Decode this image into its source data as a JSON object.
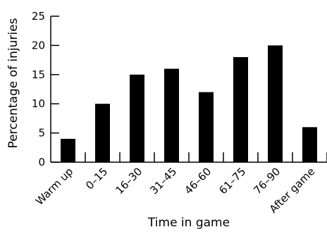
{
  "chart_data": {
    "type": "bar",
    "categories": [
      "Warm up",
      "0–15",
      "16–30",
      "31–45",
      "46–60",
      "61–75",
      "76–90",
      "After game"
    ],
    "values": [
      4,
      10,
      15,
      16,
      12,
      18,
      20,
      6
    ],
    "xlabel": "Time in game",
    "ylabel": "Percentage of injuries",
    "ylim": [
      0,
      25
    ],
    "yticks": [
      0,
      5,
      10,
      15,
      20,
      25
    ],
    "grid": false,
    "legend": "none",
    "bar_color": "#000000"
  }
}
